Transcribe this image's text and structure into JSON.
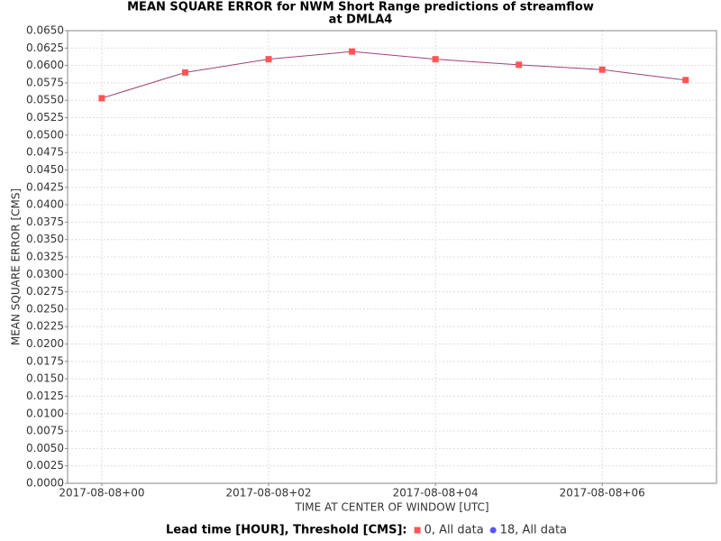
{
  "chart_data": {
    "type": "line",
    "title": [
      "MEAN SQUARE ERROR for NWM Short Range predictions of streamflow",
      "at DMLA4"
    ],
    "x_label": "TIME AT CENTER OF WINDOW [UTC]",
    "y_label": "MEAN SQUARE ERROR [CMS]",
    "legend_title": "Lead time [HOUR], Threshold [CMS]:",
    "legend": "bottom",
    "grid": true,
    "x": [
      0,
      1,
      2,
      3,
      4,
      5,
      6,
      7
    ],
    "xlim": [
      -0.41,
      7.37
    ],
    "xticks": [
      {
        "value": 0,
        "label": "2017-08-08+00"
      },
      {
        "value": 2,
        "label": "2017-08-08+02"
      },
      {
        "value": 4,
        "label": "2017-08-08+04"
      },
      {
        "value": 6,
        "label": "2017-08-08+06"
      }
    ],
    "ylim": [
      0,
      0.065
    ],
    "yticks": [
      {
        "value": 0,
        "label": "0.0000"
      },
      {
        "value": 0.0025,
        "label": "0.0025"
      },
      {
        "value": 0.005,
        "label": "0.0050"
      },
      {
        "value": 0.0075,
        "label": "0.0075"
      },
      {
        "value": 0.01,
        "label": "0.0100"
      },
      {
        "value": 0.0125,
        "label": "0.0125"
      },
      {
        "value": 0.015,
        "label": "0.0150"
      },
      {
        "value": 0.0175,
        "label": "0.0175"
      },
      {
        "value": 0.02,
        "label": "0.0200"
      },
      {
        "value": 0.0225,
        "label": "0.0225"
      },
      {
        "value": 0.025,
        "label": "0.0250"
      },
      {
        "value": 0.0275,
        "label": "0.0275"
      },
      {
        "value": 0.03,
        "label": "0.0300"
      },
      {
        "value": 0.0325,
        "label": "0.0325"
      },
      {
        "value": 0.035,
        "label": "0.0350"
      },
      {
        "value": 0.0375,
        "label": "0.0375"
      },
      {
        "value": 0.04,
        "label": "0.0400"
      },
      {
        "value": 0.0425,
        "label": "0.0425"
      },
      {
        "value": 0.045,
        "label": "0.0450"
      },
      {
        "value": 0.0475,
        "label": "0.0475"
      },
      {
        "value": 0.05,
        "label": "0.0500"
      },
      {
        "value": 0.0525,
        "label": "0.0525"
      },
      {
        "value": 0.055,
        "label": "0.0550"
      },
      {
        "value": 0.0575,
        "label": "0.0575"
      },
      {
        "value": 0.06,
        "label": "0.0600"
      },
      {
        "value": 0.0625,
        "label": "0.0625"
      },
      {
        "value": 0.065,
        "label": "0.0650"
      }
    ],
    "series": [
      {
        "name": "0, All data",
        "color": "#ff5555",
        "line_color": "#a0407a",
        "marker": "square",
        "values": [
          0.0553,
          0.059,
          0.0609,
          0.062,
          0.0609,
          0.0601,
          0.0594,
          0.0579
        ]
      },
      {
        "name": "18, All data",
        "color": "#5555ff",
        "line_color": "#5555ff",
        "marker": "circle",
        "values": [
          null,
          null,
          null,
          null,
          null,
          null,
          null,
          null
        ]
      }
    ]
  }
}
